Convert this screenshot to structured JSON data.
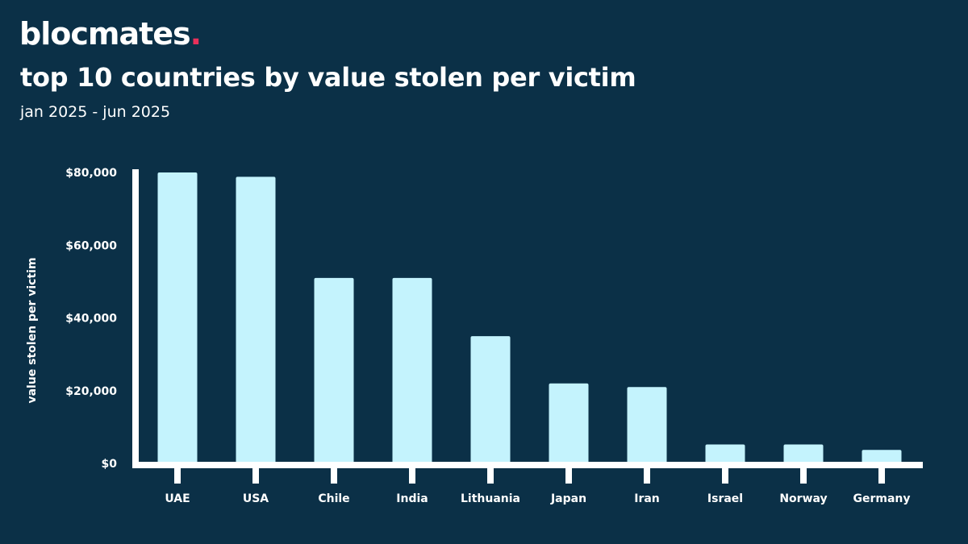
{
  "brand": {
    "name": "blocmates",
    "dot": "."
  },
  "chart_data": {
    "type": "bar",
    "title": "top 10 countries by value stolen per victim",
    "subtitle": "jan 2025 - jun 2025",
    "xlabel": "",
    "ylabel": "value stolen per victim",
    "categories": [
      "UAE",
      "USA",
      "Chile",
      "India",
      "Lithuania",
      "Japan",
      "Iran",
      "Israel",
      "Norway",
      "Germany"
    ],
    "values": [
      80000,
      78800,
      51000,
      51000,
      35000,
      22000,
      21000,
      5200,
      5200,
      3700
    ],
    "ylim": [
      0,
      80000
    ],
    "yticks": [
      0,
      20000,
      40000,
      60000,
      80000
    ],
    "ytick_labels": [
      "$0",
      "$20,000",
      "$40,000",
      "$60,000",
      "$80,000"
    ],
    "grid": false,
    "colors": {
      "bar": "#c4f3fd",
      "axis": "#ffffff",
      "background": "#0b3047"
    }
  }
}
